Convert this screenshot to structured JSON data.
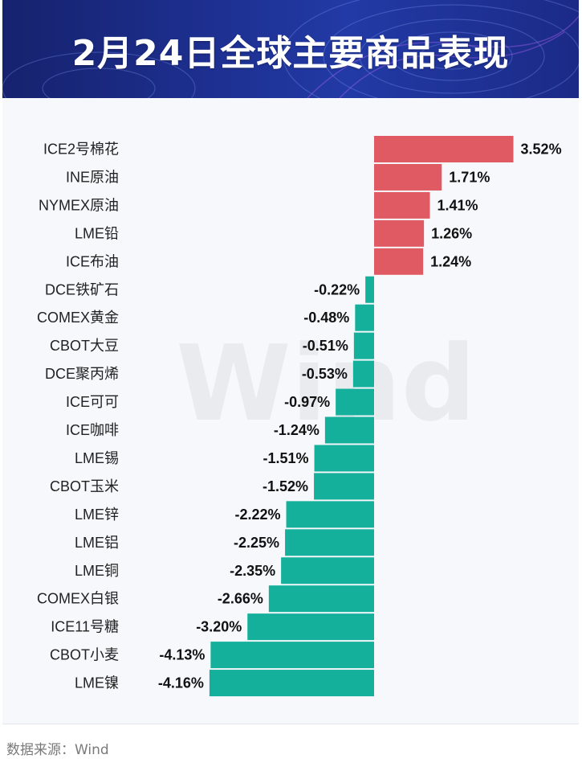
{
  "title": "2月24日全球主要商品表现",
  "source": "数据来源：Wind",
  "watermark": "Wind",
  "colors": {
    "positive": "#e05a63",
    "negative": "#14b09b",
    "header": "#1d2f8f"
  },
  "chart_data": {
    "type": "bar",
    "orientation": "horizontal",
    "categories": [
      "ICE2号棉花",
      "INE原油",
      "NYMEX原油",
      "LME铅",
      "ICE布油",
      "DCE铁矿石",
      "COMEX黄金",
      "CBOT大豆",
      "DCE聚丙烯",
      "ICE可可",
      "ICE咖啡",
      "LME锡",
      "CBOT玉米",
      "LME锌",
      "LME铝",
      "LME铜",
      "COMEX白银",
      "ICE11号糖",
      "CBOT小麦",
      "LME镍"
    ],
    "values": [
      3.52,
      1.71,
      1.41,
      1.26,
      1.24,
      -0.22,
      -0.48,
      -0.51,
      -0.53,
      -0.97,
      -1.24,
      -1.51,
      -1.52,
      -2.22,
      -2.25,
      -2.35,
      -2.66,
      -3.2,
      -4.13,
      -4.16
    ],
    "labels": [
      "3.52%",
      "1.71%",
      "1.41%",
      "1.26%",
      "1.24%",
      "-0.22%",
      "-0.48%",
      "-0.51%",
      "-0.53%",
      "-0.97%",
      "-1.24%",
      "-1.51%",
      "-1.52%",
      "-2.22%",
      "-2.25%",
      "-2.35%",
      "-2.66%",
      "-3.20%",
      "-4.13%",
      "-4.16%"
    ],
    "unit": "%",
    "grid": false,
    "axes_visible": false
  }
}
